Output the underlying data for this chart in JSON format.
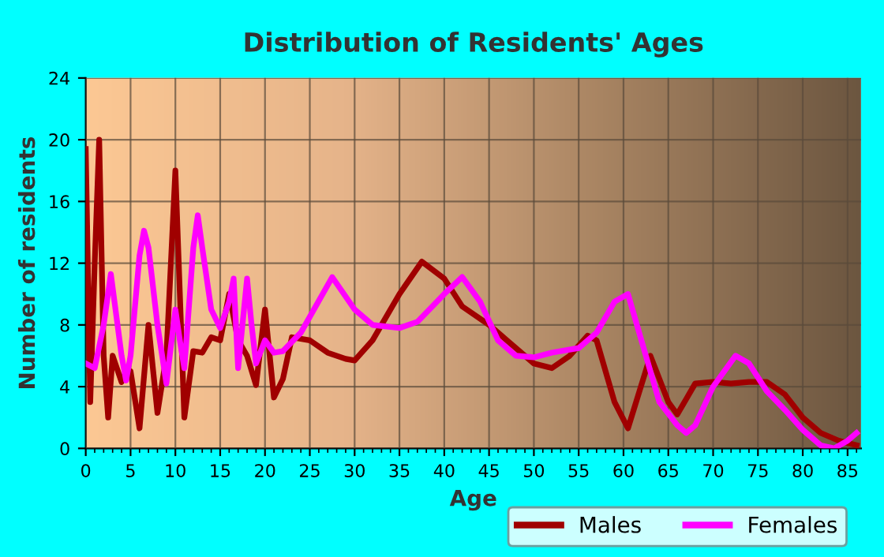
{
  "chart_data": {
    "type": "line",
    "title": "Distribution of Residents' Ages",
    "xlabel": "Age",
    "ylabel": "Number of residents",
    "xlim": [
      0,
      86.5
    ],
    "ylim": [
      0,
      24
    ],
    "xticks": [
      0,
      5,
      10,
      15,
      20,
      25,
      30,
      35,
      40,
      45,
      50,
      55,
      60,
      65,
      70,
      75,
      80,
      85
    ],
    "yticks": [
      0,
      4,
      8,
      12,
      16,
      20,
      24
    ],
    "grid": true,
    "legend": "bottom",
    "marker": "none",
    "line_style": "solid",
    "series": [
      {
        "name": "Males",
        "color": "#a00000",
        "x": [
          0,
          0.5,
          1,
          1.5,
          2,
          2.5,
          3,
          4,
          4.5,
          5,
          6,
          7,
          8,
          9,
          10,
          11,
          12,
          13,
          14,
          15,
          16,
          17,
          18,
          19,
          20,
          21,
          22,
          23,
          25,
          27,
          29,
          30,
          32,
          35,
          37.5,
          40,
          42,
          45,
          47,
          50,
          52,
          54,
          56,
          57,
          59,
          60.5,
          63,
          65,
          66,
          67,
          68,
          70,
          72,
          74,
          76,
          78,
          80,
          82,
          84,
          86
        ],
        "values": [
          19.4,
          3,
          12,
          20,
          6,
          2,
          6,
          4.3,
          5,
          5,
          1.3,
          8,
          2.3,
          6,
          18,
          2,
          6.3,
          6.2,
          7.2,
          7,
          10,
          7,
          6,
          4.1,
          9,
          3.3,
          4.5,
          7.2,
          7,
          6.2,
          5.8,
          5.7,
          7,
          10,
          12.1,
          11,
          9.2,
          8,
          7,
          5.5,
          5.2,
          6,
          7.3,
          7,
          3,
          1.3,
          6,
          3,
          2.2,
          3.2,
          4.2,
          4.3,
          4.2,
          4.3,
          4.3,
          3.5,
          2,
          1,
          0.5,
          0.2
        ]
      },
      {
        "name": "Females",
        "color": "#ff00ff",
        "x": [
          0,
          1,
          2,
          2.8,
          4,
          4.5,
          5,
          6,
          6.5,
          7,
          8,
          9,
          10,
          10.5,
          11,
          12,
          12.5,
          13,
          14,
          15,
          16,
          16.5,
          17,
          18,
          18.5,
          19,
          20,
          21,
          22,
          24,
          27.5,
          30,
          32,
          35,
          37,
          40,
          42,
          44,
          46,
          48,
          50,
          52,
          55,
          57,
          59,
          60.5,
          62,
          64,
          66,
          67,
          68,
          70,
          72.5,
          74,
          76,
          78,
          80,
          82,
          83.5,
          85,
          86
        ],
        "values": [
          5.5,
          5.2,
          8,
          11.3,
          6,
          4.4,
          6,
          12.5,
          14.1,
          13,
          8,
          4.2,
          9,
          7,
          5.2,
          13,
          15.1,
          13,
          9,
          7.8,
          9.5,
          11,
          5.2,
          11,
          8,
          5.5,
          7,
          6.2,
          6.3,
          7.5,
          11.1,
          9,
          8,
          7.8,
          8.2,
          10,
          11.1,
          9.5,
          7,
          6,
          5.9,
          6.2,
          6.5,
          7.5,
          9.5,
          10,
          7,
          3,
          1.5,
          1,
          1.5,
          4,
          6,
          5.5,
          3.7,
          2.5,
          1.2,
          0.2,
          0,
          0.5,
          1
        ]
      }
    ]
  }
}
